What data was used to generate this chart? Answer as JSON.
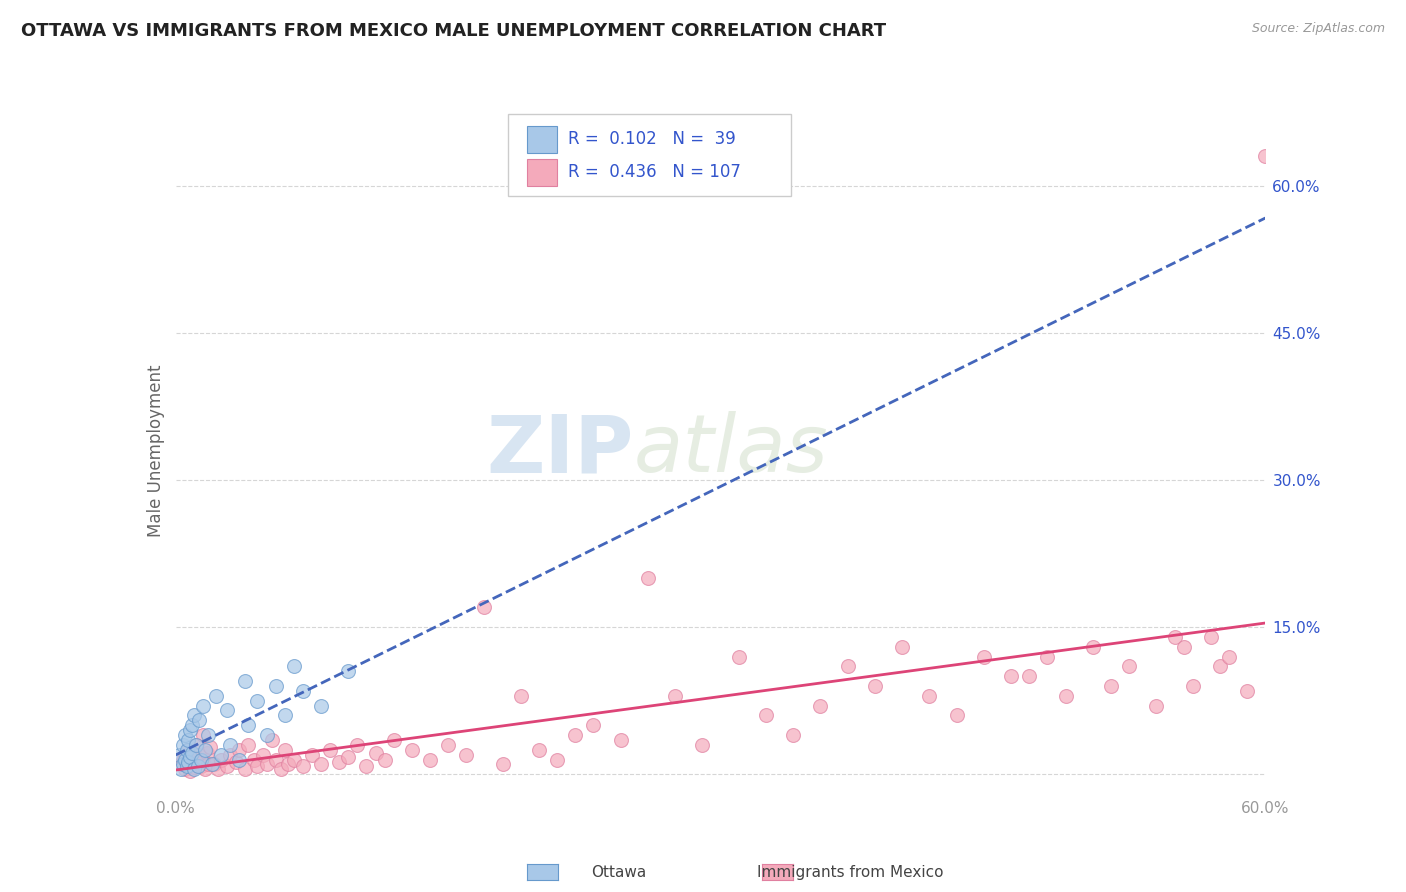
{
  "title": "OTTAWA VS IMMIGRANTS FROM MEXICO MALE UNEMPLOYMENT CORRELATION CHART",
  "source": "Source: ZipAtlas.com",
  "ylabel": "Male Unemployment",
  "xlim": [
    0.0,
    0.6
  ],
  "ylim": [
    -0.02,
    0.68
  ],
  "ytick_positions": [
    0.15,
    0.3,
    0.45,
    0.6
  ],
  "ytick_labels": [
    "15.0%",
    "30.0%",
    "45.0%",
    "60.0%"
  ],
  "watermark_zip": "ZIP",
  "watermark_atlas": "atlas",
  "legend_R1": "0.102",
  "legend_N1": "39",
  "legend_R2": "0.436",
  "legend_N2": "107",
  "color_ottawa": "#A8C8E8",
  "color_mexico": "#F4AABB",
  "color_ottawa_edge": "#6699CC",
  "color_mexico_edge": "#E080A0",
  "trendline_ottawa_color": "#4466BB",
  "trendline_mexico_color": "#DD4477",
  "background_color": "#FFFFFF",
  "grid_color": "#CCCCCC",
  "title_color": "#222222",
  "source_color": "#999999",
  "ylabel_color": "#666666",
  "tick_color": "#999999",
  "legend_text_color": "#3355CC"
}
